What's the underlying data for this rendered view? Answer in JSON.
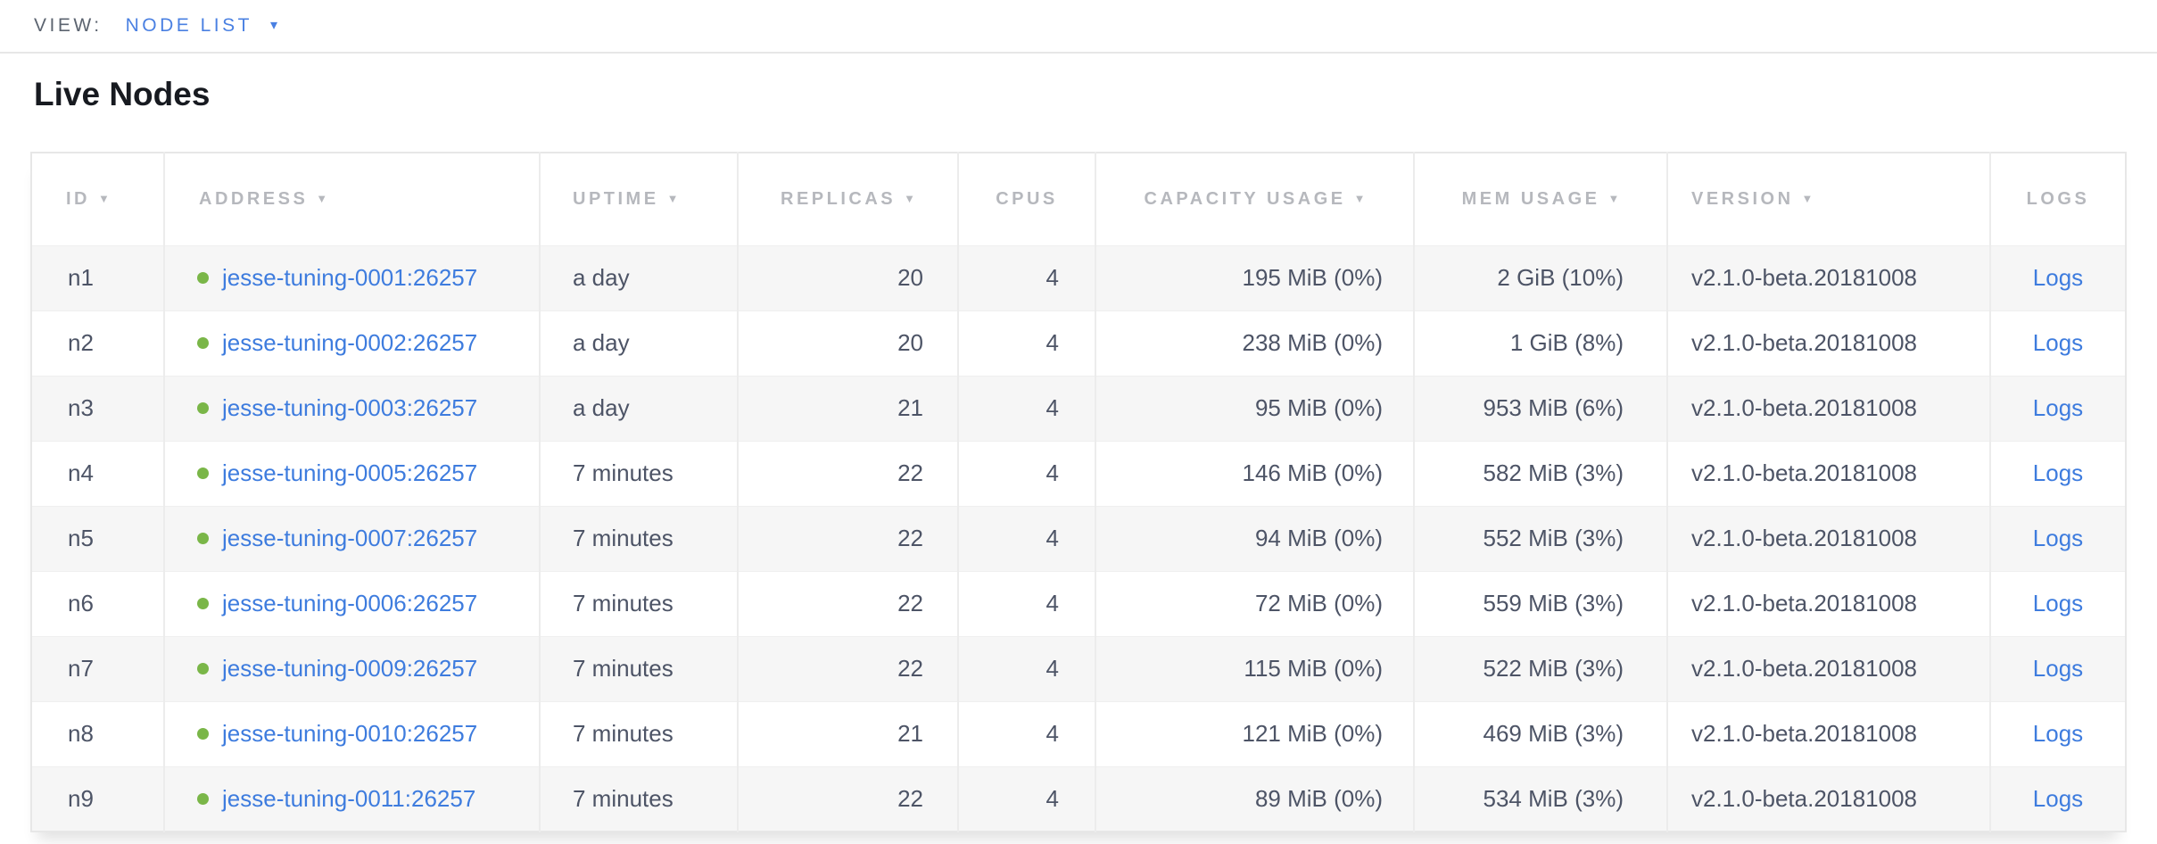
{
  "view_bar": {
    "label": "VIEW:",
    "selected_view": "NODE LIST",
    "caret_icon": "▾"
  },
  "page": {
    "title": "Live Nodes"
  },
  "colors": {
    "link_blue": "#3e7cde",
    "accent_blue": "#4a80e2",
    "status_green": "#7ab648",
    "header_gray": "#b6b8bd",
    "cell_text": "#4d5466",
    "stripe_gray": "#f6f6f6"
  },
  "table": {
    "columns": [
      {
        "key": "id",
        "label": "ID",
        "sortable": true
      },
      {
        "key": "address",
        "label": "ADDRESS",
        "sortable": true
      },
      {
        "key": "uptime",
        "label": "UPTIME",
        "sortable": true
      },
      {
        "key": "replicas",
        "label": "REPLICAS",
        "sortable": true
      },
      {
        "key": "cpus",
        "label": "CPUS",
        "sortable": false
      },
      {
        "key": "capacity",
        "label": "CAPACITY USAGE",
        "sortable": true
      },
      {
        "key": "mem",
        "label": "MEM USAGE",
        "sortable": true
      },
      {
        "key": "version",
        "label": "VERSION",
        "sortable": true
      },
      {
        "key": "logs",
        "label": "LOGS",
        "sortable": false
      }
    ],
    "sort_arrow_icon": "▼",
    "rows": [
      {
        "id": "n1",
        "address": "jesse-tuning-0001:26257",
        "status": "live",
        "uptime": "a day",
        "replicas": 20,
        "cpus": 4,
        "capacity_usage": "195 MiB (0%)",
        "mem_usage": "2 GiB (10%)",
        "version": "v2.1.0-beta.20181008",
        "logs_label": "Logs"
      },
      {
        "id": "n2",
        "address": "jesse-tuning-0002:26257",
        "status": "live",
        "uptime": "a day",
        "replicas": 20,
        "cpus": 4,
        "capacity_usage": "238 MiB (0%)",
        "mem_usage": "1 GiB (8%)",
        "version": "v2.1.0-beta.20181008",
        "logs_label": "Logs"
      },
      {
        "id": "n3",
        "address": "jesse-tuning-0003:26257",
        "status": "live",
        "uptime": "a day",
        "replicas": 21,
        "cpus": 4,
        "capacity_usage": "95 MiB (0%)",
        "mem_usage": "953 MiB (6%)",
        "version": "v2.1.0-beta.20181008",
        "logs_label": "Logs"
      },
      {
        "id": "n4",
        "address": "jesse-tuning-0005:26257",
        "status": "live",
        "uptime": "7 minutes",
        "replicas": 22,
        "cpus": 4,
        "capacity_usage": "146 MiB (0%)",
        "mem_usage": "582 MiB (3%)",
        "version": "v2.1.0-beta.20181008",
        "logs_label": "Logs"
      },
      {
        "id": "n5",
        "address": "jesse-tuning-0007:26257",
        "status": "live",
        "uptime": "7 minutes",
        "replicas": 22,
        "cpus": 4,
        "capacity_usage": "94 MiB (0%)",
        "mem_usage": "552 MiB (3%)",
        "version": "v2.1.0-beta.20181008",
        "logs_label": "Logs"
      },
      {
        "id": "n6",
        "address": "jesse-tuning-0006:26257",
        "status": "live",
        "uptime": "7 minutes",
        "replicas": 22,
        "cpus": 4,
        "capacity_usage": "72 MiB (0%)",
        "mem_usage": "559 MiB (3%)",
        "version": "v2.1.0-beta.20181008",
        "logs_label": "Logs"
      },
      {
        "id": "n7",
        "address": "jesse-tuning-0009:26257",
        "status": "live",
        "uptime": "7 minutes",
        "replicas": 22,
        "cpus": 4,
        "capacity_usage": "115 MiB (0%)",
        "mem_usage": "522 MiB (3%)",
        "version": "v2.1.0-beta.20181008",
        "logs_label": "Logs"
      },
      {
        "id": "n8",
        "address": "jesse-tuning-0010:26257",
        "status": "live",
        "uptime": "7 minutes",
        "replicas": 21,
        "cpus": 4,
        "capacity_usage": "121 MiB (0%)",
        "mem_usage": "469 MiB (3%)",
        "version": "v2.1.0-beta.20181008",
        "logs_label": "Logs"
      },
      {
        "id": "n9",
        "address": "jesse-tuning-0011:26257",
        "status": "live",
        "uptime": "7 minutes",
        "replicas": 22,
        "cpus": 4,
        "capacity_usage": "89 MiB (0%)",
        "mem_usage": "534 MiB (3%)",
        "version": "v2.1.0-beta.20181008",
        "logs_label": "Logs"
      }
    ]
  }
}
